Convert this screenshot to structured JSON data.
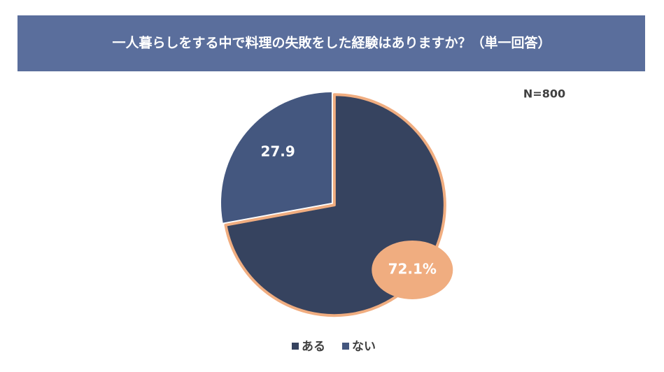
{
  "chart_data": {
    "type": "pie",
    "title": "一人暮らしをする中で料理の失敗をした経験はありますか？（単一回答）",
    "annotation": "N=800",
    "categories": [
      "ある",
      "ない"
    ],
    "values": [
      72.1,
      27.9
    ],
    "value_labels": [
      "72.1%",
      "27.9"
    ],
    "colors": [
      "#36435f",
      "#44577f"
    ],
    "highlight_color": "#f0ad80",
    "legend": "bottom"
  }
}
